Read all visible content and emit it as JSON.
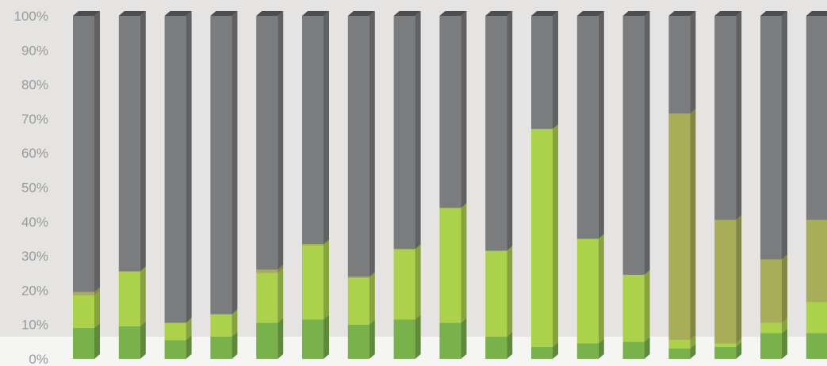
{
  "chart_data": {
    "type": "bar",
    "stacked": true,
    "style": "3d",
    "ylim": [
      0,
      100
    ],
    "y_ticks": [
      "0%",
      "10%",
      "20%",
      "30%",
      "40%",
      "50%",
      "60%",
      "70%",
      "80%",
      "90%",
      "100%"
    ],
    "grid": false,
    "categories": [
      "",
      "",
      "",
      "",
      "",
      "",
      "",
      "",
      "",
      "",
      "",
      "",
      "",
      "",
      "",
      "",
      ""
    ],
    "colors": {
      "dark_green": "#79b14a",
      "lime_green": "#acd24c",
      "olive": "#a8ad57",
      "gray": "#7a7c7e",
      "plot_background": "#e5e4e2",
      "page_background": "#f5f5f4"
    },
    "series": [
      {
        "color": "dark_green",
        "values": [
          9,
          9.5,
          5.5,
          6.5,
          10.5,
          11.5,
          10,
          11.5,
          10.5,
          6.5,
          3.5,
          4.5,
          5,
          3,
          3.5,
          7.5,
          7.5
        ]
      },
      {
        "color": "lime_green",
        "values": [
          9.5,
          16,
          5,
          6.5,
          14.5,
          21.5,
          13.5,
          20.5,
          33.5,
          25,
          63.5,
          30.5,
          19.5,
          2.5,
          1,
          3,
          9
        ]
      },
      {
        "color": "olive",
        "values": [
          1,
          0,
          0,
          0,
          1,
          0.5,
          0.5,
          0,
          0,
          0,
          0,
          0,
          0,
          66,
          36,
          18.5,
          24
        ]
      },
      {
        "color": "gray",
        "values": [
          80.5,
          74.5,
          89.5,
          87,
          74,
          66.5,
          76,
          68,
          56,
          68.5,
          33,
          65,
          75.5,
          28.5,
          59.5,
          71,
          59.5
        ]
      }
    ]
  }
}
